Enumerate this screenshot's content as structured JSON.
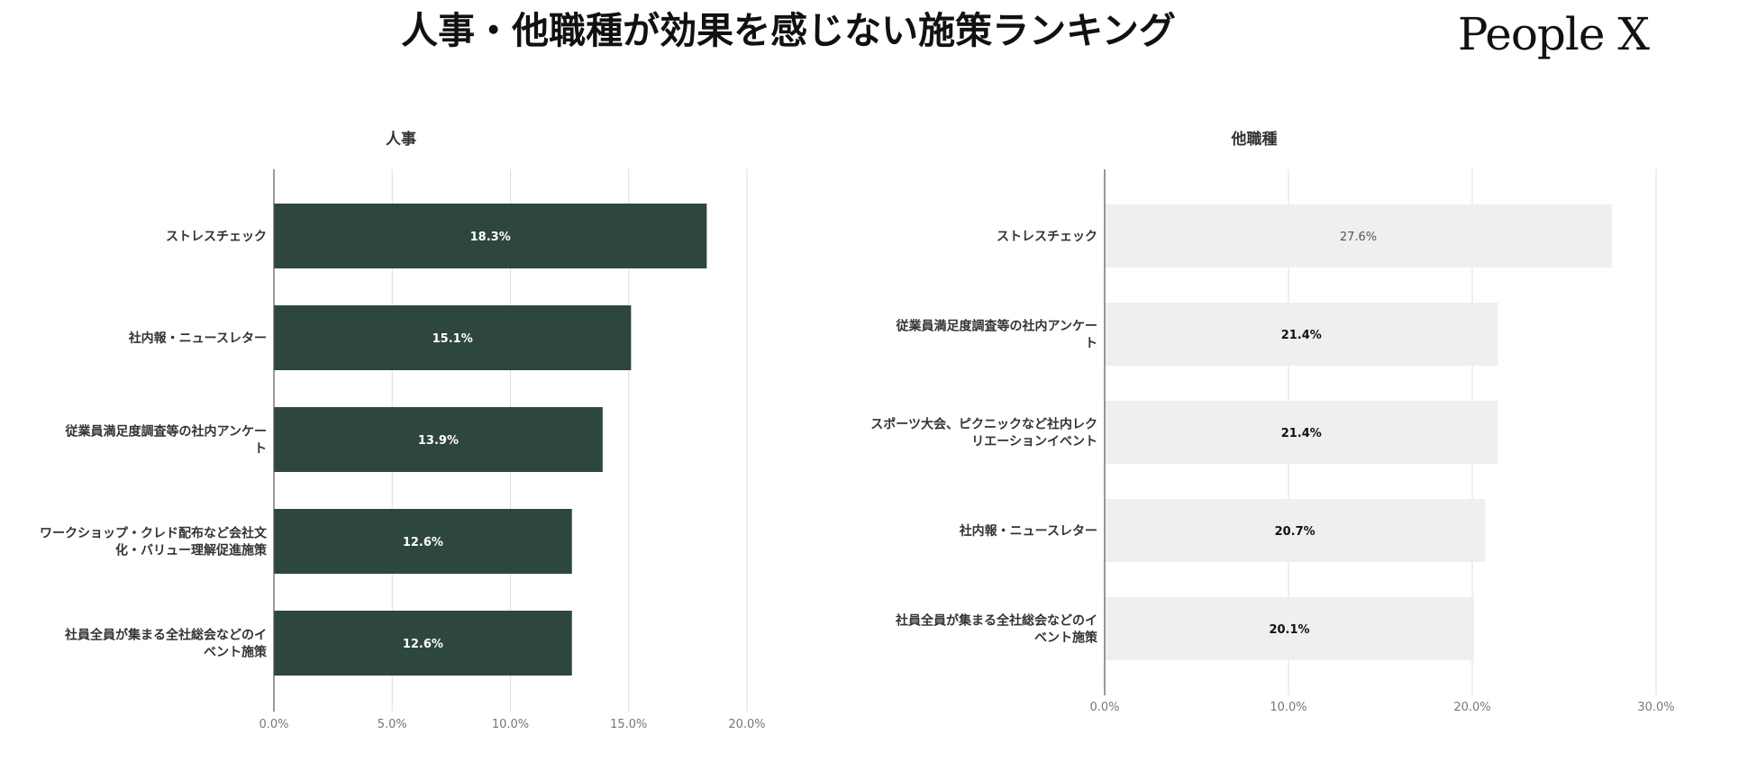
{
  "page": {
    "title": "人事・他職種が効果を感じない施策ランキング",
    "brand": "People X"
  },
  "chart_data": [
    {
      "type": "bar",
      "orientation": "horizontal",
      "title": "人事",
      "categories": [
        [
          "ストレスチェック"
        ],
        [
          "社内報・ニュースレター"
        ],
        [
          "従業員満足度調査等の社内アンケー",
          "ト"
        ],
        [
          "ワークショップ・クレド配布など会社文",
          "化・バリュー理解促進施策"
        ],
        [
          "社員全員が集まる全社総会などのイ",
          "ベント施策"
        ]
      ],
      "values": [
        18.3,
        15.1,
        13.9,
        12.6,
        12.6
      ],
      "data_labels": [
        "18.3%",
        "15.1%",
        "13.9%",
        "12.6%",
        "12.6%"
      ],
      "xlim": [
        0,
        20
      ],
      "xticks": [
        "0.0%",
        "5.0%",
        "10.0%",
        "15.0%",
        "20.0%"
      ],
      "xtick_values": [
        0,
        5,
        10,
        15,
        20
      ],
      "grid": true,
      "colors": {
        "bar": "#2e473e",
        "label": "#ffffff"
      }
    },
    {
      "type": "bar",
      "orientation": "horizontal",
      "title": "他職種",
      "categories": [
        [
          "ストレスチェック"
        ],
        [
          "従業員満足度調査等の社内アンケー",
          "ト"
        ],
        [
          "スポーツ大会、ピクニックなど社内レク",
          "リエーションイベント"
        ],
        [
          "社内報・ニュースレター"
        ],
        [
          "社員全員が集まる全社総会などのイ",
          "ベント施策"
        ]
      ],
      "values": [
        27.6,
        21.4,
        21.4,
        20.7,
        20.1
      ],
      "data_labels": [
        "27.6%",
        "21.4%",
        "21.4%",
        "20.7%",
        "20.1%"
      ],
      "xlim": [
        0,
        30
      ],
      "xticks": [
        "0.0%",
        "10.0%",
        "20.0%",
        "30.0%"
      ],
      "xtick_values": [
        0,
        10,
        20,
        30
      ],
      "grid": true,
      "colors": {
        "bar": "#efefef",
        "label": "#111111",
        "label_first": "#555555"
      }
    }
  ]
}
